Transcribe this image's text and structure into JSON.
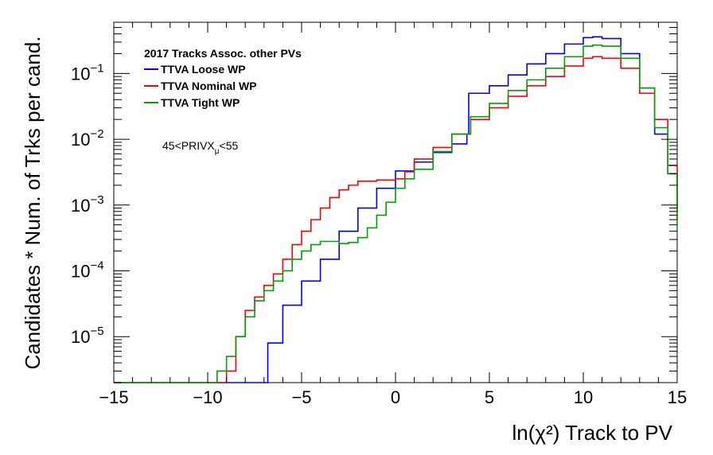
{
  "chart_data": {
    "type": "line",
    "title": "",
    "xlabel": "ln(χ²) Track to PV",
    "ylabel": "Candidates * Num. of Trks per cand.",
    "xlim": [
      -15,
      15
    ],
    "ylim": [
      2e-06,
      0.6
    ],
    "yscale": "log",
    "grid": false,
    "legend_position": "top-left",
    "x_ticks": [
      -15,
      -10,
      -5,
      0,
      5,
      10,
      15
    ],
    "x_tick_labels": [
      "−15",
      "−10",
      "−5",
      "0",
      "5",
      "10",
      "15"
    ],
    "y_ticks": [
      {
        "value": 1e-05,
        "base": "10",
        "exp": "−5"
      },
      {
        "value": 0.0001,
        "base": "10",
        "exp": "−4"
      },
      {
        "value": 0.001,
        "base": "10",
        "exp": "−3"
      },
      {
        "value": 0.01,
        "base": "10",
        "exp": "−2"
      },
      {
        "value": 0.1,
        "base": "10",
        "exp": "−1"
      }
    ],
    "legend_header": "2017 Tracks Assoc. other PVs",
    "annotation": {
      "main": "45<PRIVX",
      "sub": "μ",
      "tail": "<55"
    },
    "series": [
      {
        "name": "TTVA Loose WP",
        "color": "#0000ff",
        "x": [
          -6.8,
          -6.0,
          -5.0,
          -4.0,
          -3.0,
          -2.0,
          -1.0,
          0.0,
          1.0,
          2.0,
          3.0,
          3.8,
          3.9,
          5.0,
          6.0,
          7.0,
          8.0,
          9.0,
          10.0,
          10.5,
          11.0,
          12.0,
          13.0,
          13.8,
          14.5,
          15.0
        ],
        "y": [
          8e-06,
          3e-05,
          7e-05,
          0.00015,
          0.0004,
          0.0009,
          0.0018,
          0.0033,
          0.0045,
          0.0063,
          0.0085,
          0.012,
          0.05,
          0.065,
          0.095,
          0.14,
          0.2,
          0.28,
          0.35,
          0.36,
          0.34,
          0.2,
          0.06,
          0.012,
          0.003,
          0.0008
        ]
      },
      {
        "name": "TTVA Nominal WP",
        "color": "#ff0000",
        "x": [
          -9.0,
          -8.5,
          -8.0,
          -7.5,
          -7.0,
          -6.5,
          -6.0,
          -5.5,
          -5.0,
          -4.5,
          -4.0,
          -3.5,
          -3.0,
          -2.5,
          -2.0,
          -1.0,
          0.0,
          0.5,
          1.0,
          2.0,
          3.0,
          4.0,
          5.0,
          6.0,
          7.0,
          8.0,
          9.0,
          10.0,
          10.5,
          11.0,
          12.0,
          13.0,
          13.8,
          14.5,
          15.0
        ],
        "y": [
          3e-06,
          1e-05,
          2.5e-05,
          4e-05,
          6e-05,
          9e-05,
          0.00015,
          0.00025,
          0.0004,
          0.0006,
          0.0009,
          0.0013,
          0.0017,
          0.002,
          0.0023,
          0.0024,
          0.0025,
          0.0032,
          0.005,
          0.0075,
          0.012,
          0.02,
          0.03,
          0.045,
          0.065,
          0.09,
          0.13,
          0.17,
          0.18,
          0.17,
          0.12,
          0.05,
          0.02,
          0.004,
          0.0006
        ]
      },
      {
        "name": "TTVA Tight WP",
        "color": "#00a000",
        "x": [
          -9.5,
          -9.0,
          -8.5,
          -8.0,
          -7.5,
          -7.0,
          -6.5,
          -6.0,
          -5.5,
          -5.0,
          -4.5,
          -4.0,
          -3.5,
          -3.0,
          -2.5,
          -2.0,
          -1.5,
          -1.0,
          -0.5,
          0.0,
          0.5,
          1.0,
          2.0,
          3.0,
          4.0,
          5.0,
          6.0,
          7.0,
          8.0,
          9.0,
          10.0,
          10.5,
          11.0,
          12.0,
          13.0,
          13.8,
          14.5,
          15.0
        ],
        "y": [
          3e-06,
          5e-06,
          1e-05,
          2e-05,
          3.5e-05,
          5e-05,
          7e-05,
          0.0001,
          0.00015,
          0.0002,
          0.00025,
          0.00028,
          0.00028,
          0.00026,
          0.00027,
          0.00032,
          0.00045,
          0.0007,
          0.0011,
          0.0018,
          0.0025,
          0.0035,
          0.0065,
          0.012,
          0.022,
          0.035,
          0.055,
          0.08,
          0.12,
          0.18,
          0.26,
          0.27,
          0.26,
          0.17,
          0.06,
          0.015,
          0.003,
          0.0005
        ]
      }
    ]
  }
}
